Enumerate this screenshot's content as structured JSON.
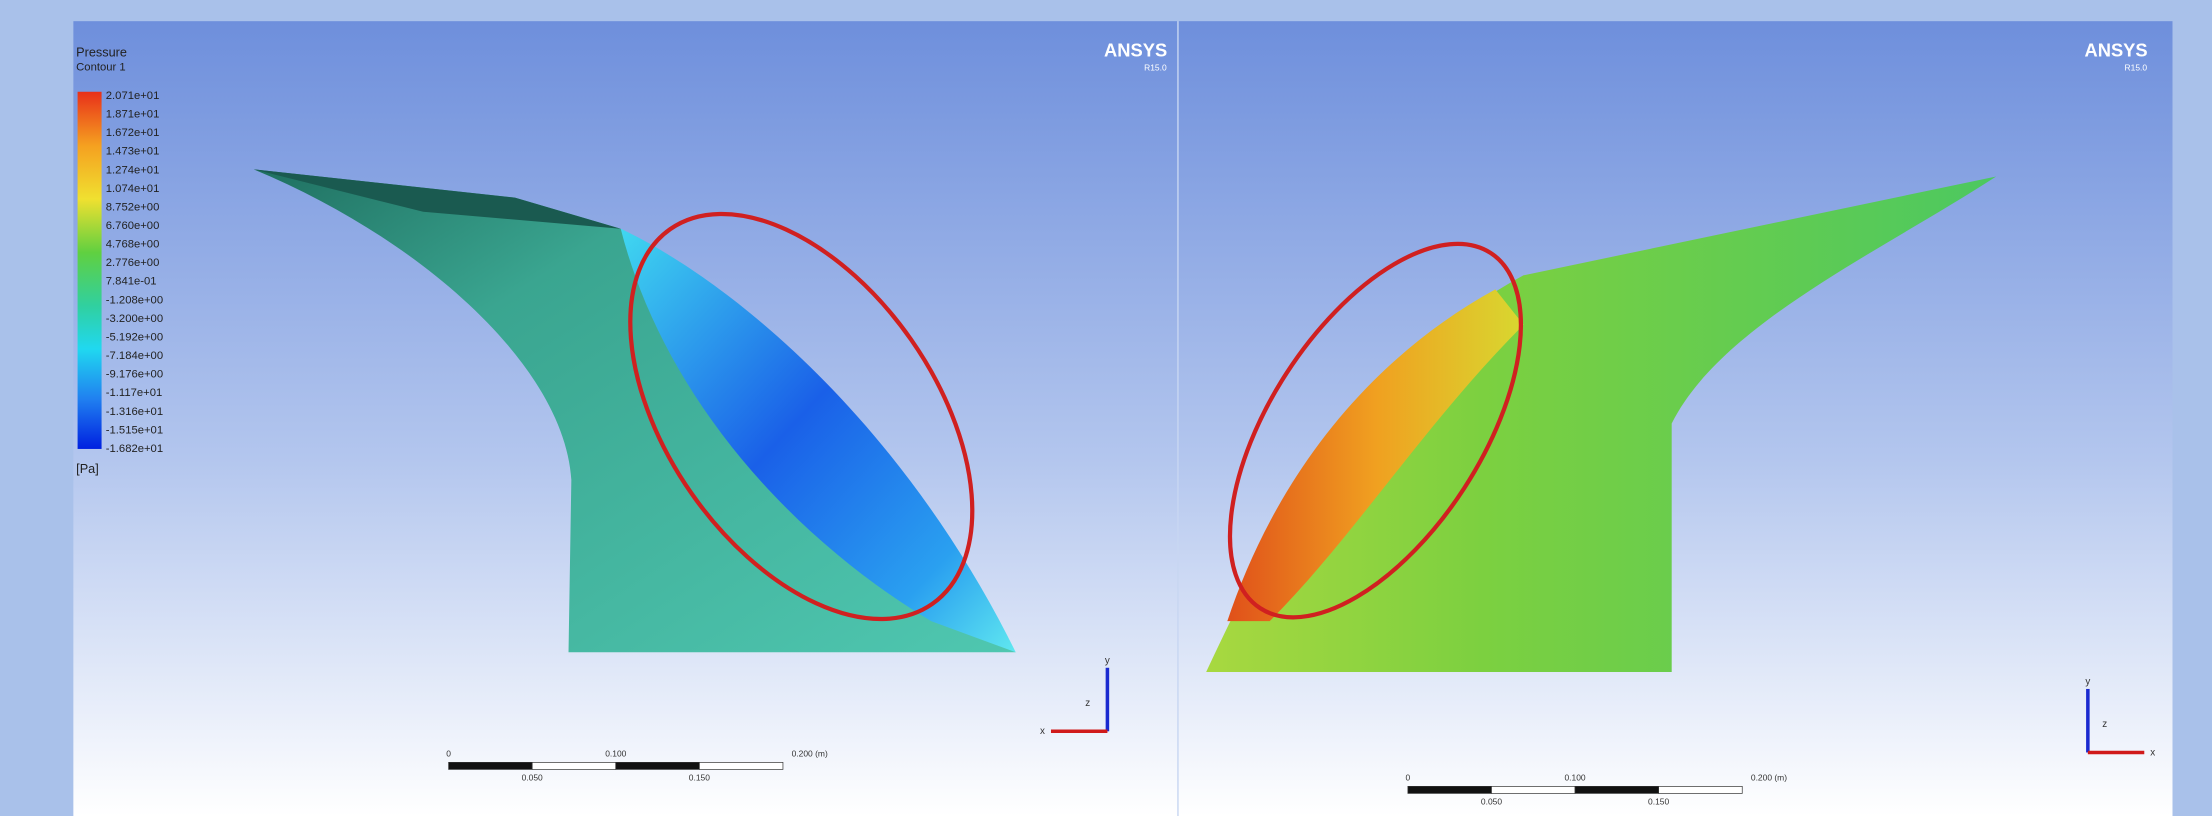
{
  "legend": {
    "title": "Pressure",
    "subtitle": "Contour 1",
    "unit": "[Pa]",
    "labels": [
      "2.071e+01",
      "1.871e+01",
      "1.672e+01",
      "1.473e+01",
      "1.274e+01",
      "1.074e+01",
      "8.752e+00",
      "6.760e+00",
      "4.768e+00",
      "2.776e+00",
      "7.841e-01",
      "-1.208e+00",
      "-3.200e+00",
      "-5.192e+00",
      "-7.184e+00",
      "-9.176e+00",
      "-1.117e+01",
      "-1.316e+01",
      "-1.515e+01",
      "-1.682e+01"
    ]
  },
  "viewports": [
    {
      "brand": "ANSYS",
      "version": "R15.0",
      "scale_top": [
        "0",
        "0.100",
        "0.200 (m)"
      ],
      "scale_bottom": [
        "0.050",
        "0.150"
      ],
      "axes": [
        "x",
        "y",
        "z"
      ]
    },
    {
      "brand": "ANSYS",
      "version": "R15.0",
      "scale_top": [
        "0",
        "0.100",
        "0.200 (m)"
      ],
      "scale_bottom": [
        "0.050",
        "0.150"
      ],
      "axes": [
        "x",
        "y",
        "z"
      ]
    }
  ]
}
